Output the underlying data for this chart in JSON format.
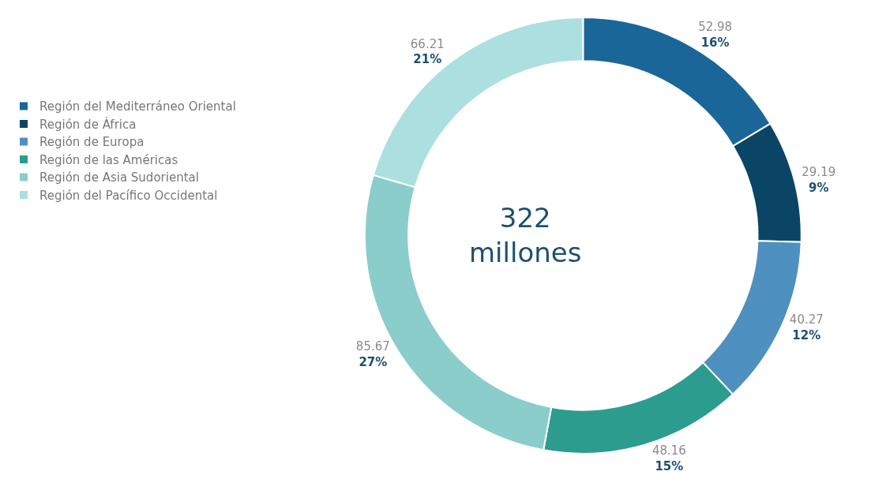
{
  "chart_data": {
    "type": "donut",
    "categories": [
      "Región del Mediterráneo Oriental",
      "Región de África",
      "Región de Europa",
      "Región de las Américas",
      "Región de Asia Sudoriental",
      "Región del Pacífico Occidental"
    ],
    "values": [
      52.98,
      29.19,
      40.27,
      48.16,
      85.67,
      66.21
    ],
    "colors": [
      "#1b6699",
      "#0b4566",
      "#4e90bf",
      "#2c9c8f",
      "#8bcdca",
      "#acdfdf"
    ],
    "value_labels": [
      "52.98\n16%",
      "29.19\n9%",
      "40.27\n12%",
      "48.16\n15%",
      "85.67\n27%",
      "66.21\n21%"
    ],
    "annotations": [
      "322\nmillones"
    ],
    "legend": "left"
  }
}
